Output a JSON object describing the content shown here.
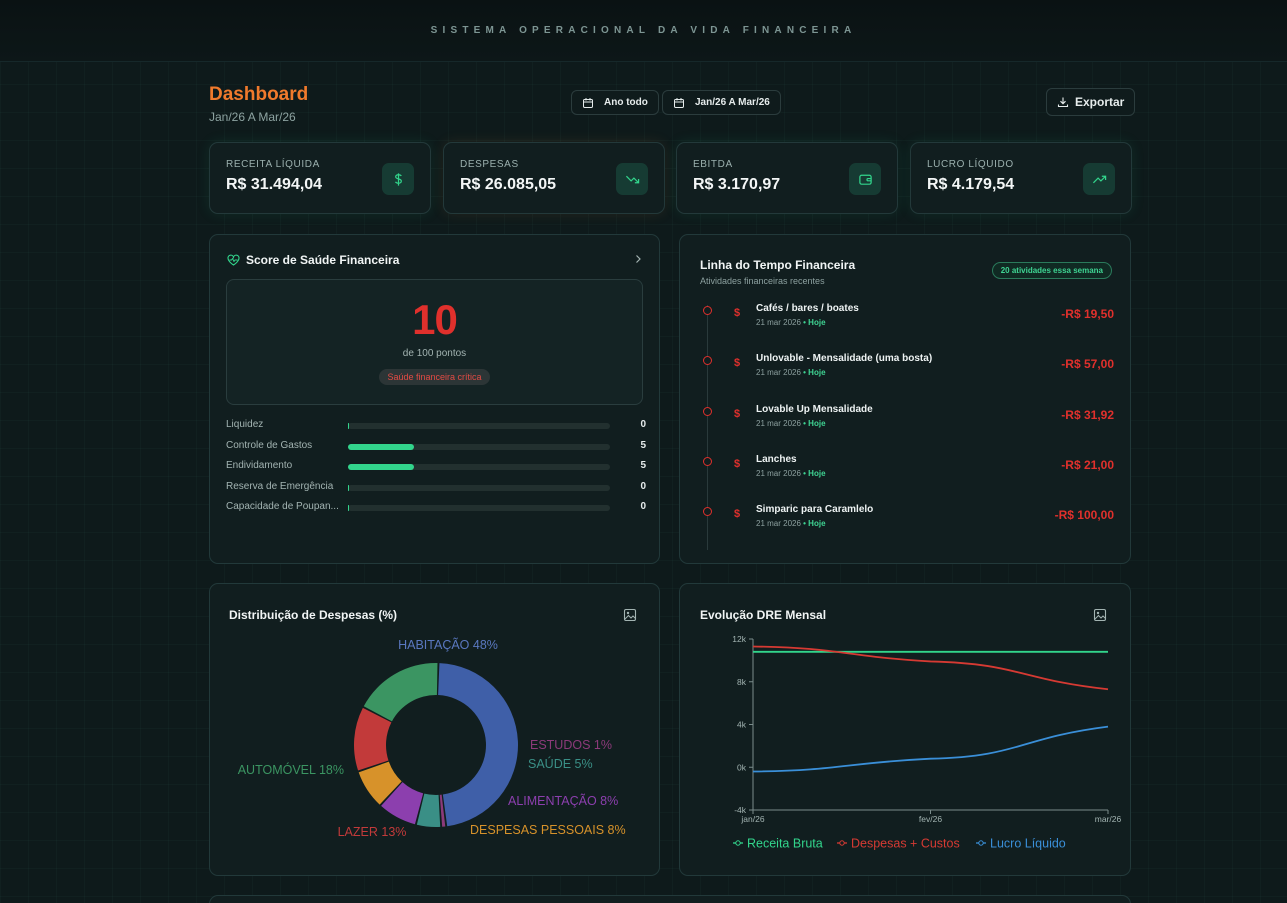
{
  "app": {
    "banner": "SISTEMA OPERACIONAL DA VIDA FINANCEIRA"
  },
  "header": {
    "title": "Dashboard",
    "period": "Jan/26 A Mar/26",
    "filter_all_year": "Ano todo",
    "filter_range": "Jan/26 A Mar/26",
    "export_label": "Exportar"
  },
  "kpis": [
    {
      "label": "RECEITA LÍQUIDA",
      "value": "R$ 31.494,04",
      "icon": "dollar-icon"
    },
    {
      "label": "DESPESAS",
      "value": "R$ 26.085,05",
      "icon": "trending-down-icon"
    },
    {
      "label": "EBITDA",
      "value": "R$ 3.170,97",
      "icon": "wallet-icon"
    },
    {
      "label": "LUCRO LÍQUIDO",
      "value": "R$ 4.179,54",
      "icon": "trending-up-icon"
    }
  ],
  "health": {
    "title": "Score de Saúde Financeira",
    "score": "10",
    "score_sub": "de 100 pontos",
    "status": "Saúde financeira crítica",
    "metrics": [
      {
        "label": "Liquidez",
        "value": "0",
        "fraction": 0.0
      },
      {
        "label": "Controle de Gastos",
        "value": "5",
        "fraction": 0.25
      },
      {
        "label": "Endividamento",
        "value": "5",
        "fraction": 0.25
      },
      {
        "label": "Reserva de Emergência",
        "value": "0",
        "fraction": 0.0
      },
      {
        "label": "Capacidade de Poupan...",
        "value": "0",
        "fraction": 0.0
      }
    ]
  },
  "timeline": {
    "title": "Linha do Tempo Financeira",
    "subtitle": "Atividades financeiras recentes",
    "badge": "20 atividades essa semana",
    "items": [
      {
        "name": "Cafés / bares / boates",
        "date": "21 mar 2026",
        "tag": "• Hoje",
        "amount": "-R$ 19,50",
        "currency": "$"
      },
      {
        "name": "Unlovable - Mensalidade (uma bosta)",
        "date": "21 mar 2026",
        "tag": "• Hoje",
        "amount": "-R$ 57,00",
        "currency": "$"
      },
      {
        "name": "Lovable Up Mensalidade",
        "date": "21 mar 2026",
        "tag": "• Hoje",
        "amount": "-R$ 31,92",
        "currency": "$"
      },
      {
        "name": "Lanches",
        "date": "21 mar 2026",
        "tag": "• Hoje",
        "amount": "-R$ 21,00",
        "currency": "$"
      },
      {
        "name": "Simparic para Caramlelo",
        "date": "21 mar 2026",
        "tag": "• Hoje",
        "amount": "-R$ 100,00",
        "currency": "$"
      }
    ]
  },
  "colors": {
    "accent": "#f07a2c",
    "positive": "#32d58c",
    "negative": "#e0302c",
    "blue": "#3a8fd8"
  },
  "chart_data": [
    {
      "type": "pie",
      "title": "Distribuição de Despesas (%)",
      "categories": [
        "HABITAÇÃO",
        "ESTUDOS",
        "SAÚDE",
        "ALIMENTAÇÃO",
        "DESPESAS PESSOAIS",
        "LAZER",
        "AUTOMÓVEL"
      ],
      "values": [
        48,
        1,
        5,
        8,
        8,
        13,
        18
      ],
      "labels": [
        "HABITAÇÃO 48%",
        "ESTUDOS 1%",
        "SAÚDE 5%",
        "ALIMENTAÇÃO 8%",
        "DESPESAS PESSOAIS 8%",
        "LAZER 13%",
        "AUTOMÓVEL 18%"
      ],
      "colors": [
        "#3f5fa8",
        "#8c3a7a",
        "#3a8f86",
        "#8c3fae",
        "#d7922a",
        "#c23a3a",
        "#3b9562"
      ]
    },
    {
      "type": "line",
      "title": "Evolução DRE Mensal",
      "categories": [
        "jan/26",
        "fev/26",
        "mar/26"
      ],
      "ylim": [
        -4000,
        12000
      ],
      "yticks": [
        "12k",
        "8k",
        "4k",
        "0k",
        "-4k"
      ],
      "ytick_values": [
        12000,
        8000,
        4000,
        0,
        -4000
      ],
      "series": [
        {
          "name": "Receita Bruta",
          "values": [
            10800,
            10800,
            10800
          ],
          "color": "#32d58c"
        },
        {
          "name": "Despesas + Custos",
          "values": [
            11300,
            9900,
            7300
          ],
          "color": "#d63a33"
        },
        {
          "name": "Lucro Líquido",
          "values": [
            -400,
            800,
            3800
          ],
          "color": "#3a8fd8"
        }
      ]
    }
  ]
}
